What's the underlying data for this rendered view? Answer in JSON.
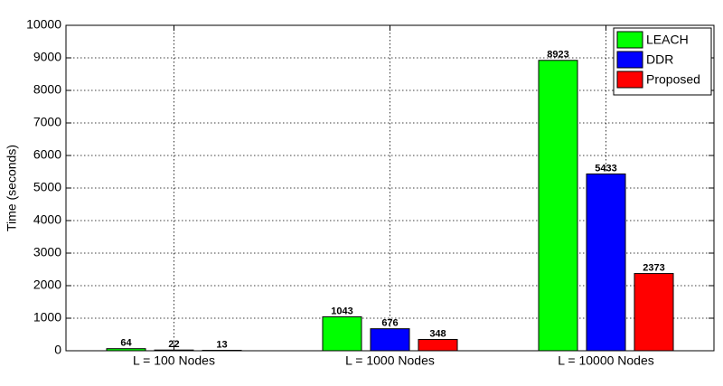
{
  "chart_data": {
    "type": "bar",
    "y_label": "Time (seconds)",
    "categories": [
      "L = 100 Nodes",
      "L = 1000 Nodes",
      "L = 10000 Nodes"
    ],
    "series": [
      {
        "name": "LEACH",
        "color": "#00ff00",
        "values": [
          64,
          1043,
          8923
        ]
      },
      {
        "name": "DDR",
        "color": "#0000ff",
        "values": [
          22,
          676,
          5433
        ]
      },
      {
        "name": "Proposed",
        "color": "#ff0000",
        "values": [
          13,
          348,
          2373
        ]
      }
    ],
    "ylim": [
      0,
      10000
    ],
    "yticks": [
      0,
      1000,
      2000,
      3000,
      4000,
      5000,
      6000,
      7000,
      8000,
      9000,
      10000
    ],
    "grid": true,
    "legend": "upper-right"
  }
}
